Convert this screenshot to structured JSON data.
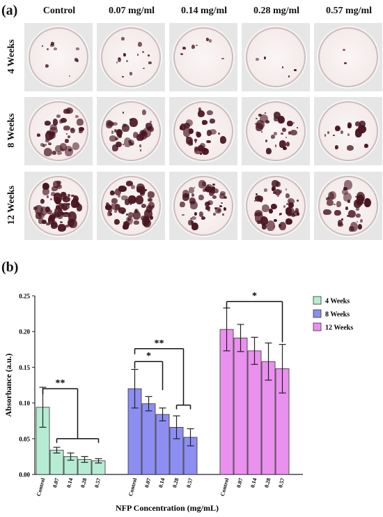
{
  "panel_a": {
    "label": "(a)",
    "columns": [
      "Control",
      "0.07 mg/ml",
      "0.14 mg/ml",
      "0.28 mg/ml",
      "0.57 mg/ml"
    ],
    "rows": [
      "4 Weeks",
      "8 Weeks",
      "12 Weeks"
    ]
  },
  "panel_b": {
    "label": "(b)"
  },
  "colors": {
    "4 Weeks": "#b6ecd3",
    "8 Weeks": "#8d8ef2",
    "12 Weeks": "#ea90ee"
  },
  "chart_data": {
    "type": "bar",
    "title": "",
    "xlabel": "NFP  Concentration (mg/mL)",
    "ylabel": "Absorbance (a.u.)",
    "ylim": [
      0,
      0.25
    ],
    "yticks": [
      "0.00",
      "0.05",
      "0.10",
      "0.15",
      "0.20",
      "0.25"
    ],
    "categories": [
      "Control",
      "0.07",
      "0.14",
      "0.28",
      "0.57"
    ],
    "legend_position": "top-right",
    "series": [
      {
        "name": "4 Weeks",
        "values": [
          0.094,
          0.034,
          0.025,
          0.021,
          0.019
        ],
        "errors": [
          0.028,
          0.004,
          0.005,
          0.004,
          0.003
        ]
      },
      {
        "name": "8 Weeks",
        "values": [
          0.12,
          0.099,
          0.084,
          0.066,
          0.052
        ],
        "errors": [
          0.027,
          0.01,
          0.009,
          0.016,
          0.012
        ]
      },
      {
        "name": "12 Weeks",
        "values": [
          0.203,
          0.191,
          0.173,
          0.158,
          0.148
        ],
        "errors": [
          0.03,
          0.019,
          0.019,
          0.026,
          0.034
        ]
      }
    ],
    "annotations": [
      {
        "series": "4 Weeks",
        "label": "**",
        "from": "Control",
        "to": [
          "0.07",
          "0.14",
          "0.28",
          "0.57"
        ]
      },
      {
        "series": "8 Weeks",
        "label": "*",
        "from": "Control",
        "to": [
          "0.14"
        ]
      },
      {
        "series": "8 Weeks",
        "label": "**",
        "from": "Control",
        "to": [
          "0.28",
          "0.57"
        ]
      },
      {
        "series": "12 Weeks",
        "label": "*",
        "from": "Control",
        "to": [
          "0.57"
        ]
      }
    ]
  }
}
